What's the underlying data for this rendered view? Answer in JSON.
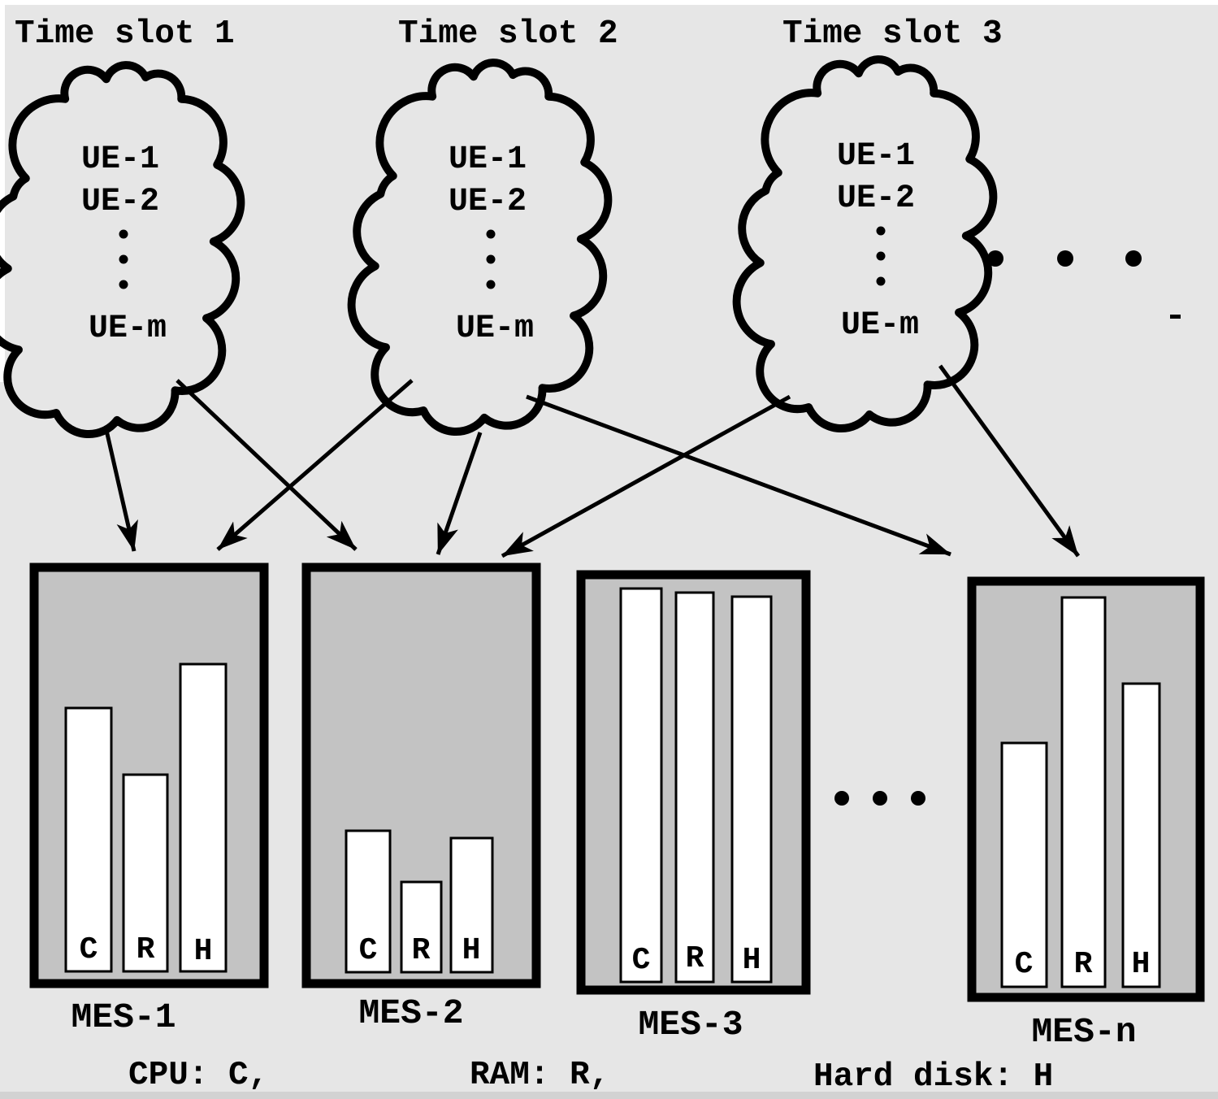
{
  "colors": {
    "background": "#e6e6e6",
    "ink": "#000000",
    "server_fill": "#c3c3c3",
    "bar_fill": "#ffffff",
    "bottom_band": "#d2d2d2"
  },
  "time_slots": [
    "Time slot 1",
    "Time slot 2",
    "Time slot 3"
  ],
  "clouds": [
    {
      "slot": "Time slot 1",
      "ues": [
        "UE-1",
        "UE-2",
        "UE-m"
      ]
    },
    {
      "slot": "Time slot 2",
      "ues": [
        "UE-1",
        "UE-2",
        "UE-m"
      ]
    },
    {
      "slot": "Time slot 3",
      "ues": [
        "UE-1",
        "UE-2",
        "UE-m"
      ]
    }
  ],
  "servers": [
    {
      "name": "MES-1",
      "bars": [
        {
          "label": "C",
          "value": 0.67
        },
        {
          "label": "R",
          "value": 0.5
        },
        {
          "label": "H",
          "value": 0.78
        }
      ]
    },
    {
      "name": "MES-2",
      "bars": [
        {
          "label": "C",
          "value": 0.36
        },
        {
          "label": "R",
          "value": 0.23
        },
        {
          "label": "H",
          "value": 0.34
        }
      ]
    },
    {
      "name": "MES-3",
      "bars": [
        {
          "label": "C",
          "value": 1.0
        },
        {
          "label": "R",
          "value": 0.99
        },
        {
          "label": "H",
          "value": 0.98
        }
      ]
    },
    {
      "name": "MES-n",
      "bars": [
        {
          "label": "C",
          "value": 0.62
        },
        {
          "label": "R",
          "value": 0.99
        },
        {
          "label": "H",
          "value": 0.77
        }
      ]
    }
  ],
  "legend": [
    {
      "text": "CPU: C,"
    },
    {
      "text": "RAM: R,"
    },
    {
      "text": "Hard disk: H"
    }
  ],
  "connections": [
    {
      "from": "Time slot 1",
      "to": "MES-1"
    },
    {
      "from": "Time slot 1",
      "to": "MES-2"
    },
    {
      "from": "Time slot 2",
      "to": "MES-1"
    },
    {
      "from": "Time slot 2",
      "to": "MES-2"
    },
    {
      "from": "Time slot 2",
      "to": "MES-n"
    },
    {
      "from": "Time slot 3",
      "to": "MES-2"
    },
    {
      "from": "Time slot 3",
      "to": "MES-n"
    }
  ],
  "ellipses": {
    "after_time_slot_3": "more time slots (3 dots)",
    "between_mes3_and_mesn": "more servers (3 dots)"
  }
}
